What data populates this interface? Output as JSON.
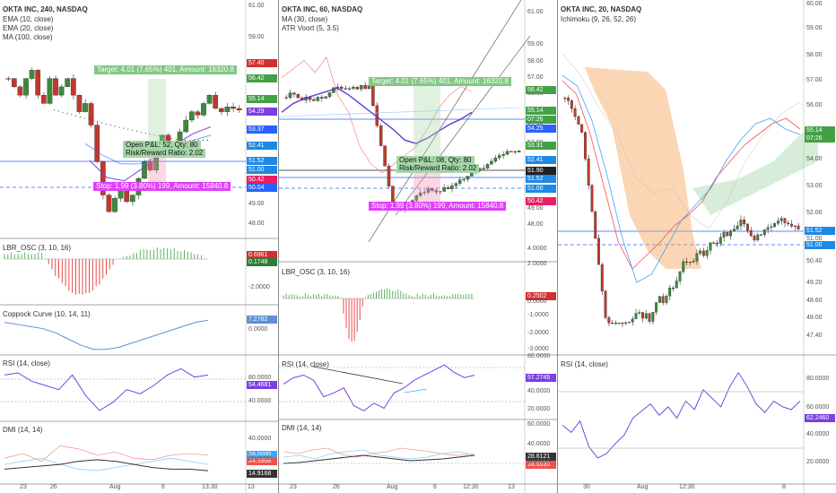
{
  "colors": {
    "up": "#3b8a3b",
    "down": "#c0392b",
    "blue": "#2962ff",
    "purple": "#7b3fe4",
    "pink": "#e91e63",
    "green": "#66bb6a",
    "orange": "#f7a35c"
  },
  "panes": [
    {
      "title": "OKTA INC, 240, NASDAQ",
      "legends": [
        "EMA (10, close)",
        "EMA (20, close)",
        "MA (100, close)"
      ],
      "price_ticks": [
        "61.00",
        "59.00",
        "55.00",
        "53.00",
        "51.00",
        "49.00",
        "48.00"
      ],
      "price_labels": [
        {
          "text": "57.40",
          "color": "#d32f2f"
        },
        {
          "text": "56.42",
          "color": "#43a047"
        },
        {
          "text": "55.14",
          "color": "#43a047"
        },
        {
          "text": "54.29",
          "color": "#7b3fe4"
        },
        {
          "text": "53.37",
          "color": "#2962ff"
        },
        {
          "text": "52.41",
          "color": "#1e88e5"
        },
        {
          "text": "51.52",
          "color": "#1e88e5"
        },
        {
          "text": "51.00",
          "color": "#1e88e5"
        },
        {
          "text": "50.42",
          "color": "#e91e63"
        },
        {
          "text": "50.04",
          "color": "#2962ff"
        }
      ],
      "target": "Target: 4.01 (7.65%) 401, Amount: 16320.8",
      "open_pl": "Open P&L: 52, Qty: 80",
      "rr": "Risk/Reward Ratio: 2.02",
      "stop": "Stop: 1.99 (3.80%) 199, Amount: 15840.8",
      "osc_title": "LBR_OSC (3, 10, 16)",
      "osc_vals": [
        "0.6961",
        "0.1748"
      ],
      "osc_ticks": [
        "-2.0000"
      ],
      "coppock_title": "Coppock Curve (10, 14, 11)",
      "coppock_val": "7.2782",
      "coppock_ticks": [
        "0.0000"
      ],
      "rsi_title": "RSI (14, close)",
      "rsi_val": "54.4681",
      "rsi_ticks": [
        "80.0000",
        "40.0000"
      ],
      "dmi_title": "DMI (14, 14)",
      "dmi_vals": [
        "28.0000",
        "24.5908",
        "14.9168"
      ],
      "dmi_ticks": [
        "40.0000",
        "20.0000"
      ],
      "time_ticks": [
        "23",
        "26",
        "Aug",
        "6",
        "13:30",
        "13"
      ]
    },
    {
      "title": "OKTA INC, 60, NASDAQ",
      "legends": [
        "MA (30, close)",
        "ATR Voort (5, 3.5)"
      ],
      "price_ticks": [
        "61.00",
        "59.00",
        "58.00",
        "57.00",
        "56.00",
        "55.00",
        "54.00",
        "53.00",
        "52.00",
        "51.00",
        "50.00",
        "49.00",
        "48.00"
      ],
      "price_labels": [
        {
          "text": "56.42",
          "color": "#43a047"
        },
        {
          "text": "55.14",
          "color": "#43a047"
        },
        {
          "text": "07:26",
          "color": "#43a047"
        },
        {
          "text": "54.25",
          "color": "#2962ff"
        },
        {
          "text": "53.31",
          "color": "#43a047"
        },
        {
          "text": "52.41",
          "color": "#1e88e5"
        },
        {
          "text": "51.90",
          "color": "#222222"
        },
        {
          "text": "51.52",
          "color": "#1e88e5"
        },
        {
          "text": "51.00",
          "color": "#1e88e5"
        },
        {
          "text": "50.42",
          "color": "#e91e63"
        }
      ],
      "target": "Target: 4.01 (7.65%) 401, Amount: 16320.8",
      "open_pl": "Open P&L: 08, Qty: 80",
      "rr": "Risk/Reward Ratio: 2.02",
      "stop": "Stop: 1.99 (3.80%) 199, Amount: 15840.8",
      "osc_title": "LBR_OSC (3, 10, 16)",
      "osc_vals": [
        "0.2502"
      ],
      "osc_ticks": [
        "4.0000",
        "2.0000",
        "0.0000",
        "-1.0000",
        "-2.0000",
        "-3.0000"
      ],
      "rsi_title": "RSI (14, close)",
      "rsi_val": "57.2745",
      "rsi_ticks": [
        "80.0000",
        "40.0000",
        "20.0000"
      ],
      "dmi_title": "DMI (14, 14)",
      "dmi_vals": [
        "28.6121",
        "18.5535"
      ],
      "dmi_ticks": [
        "60.0000",
        "40.0000",
        "20.0000"
      ],
      "time_ticks": [
        "23",
        "26",
        "Aug",
        "6",
        "12:30",
        "13"
      ]
    },
    {
      "title": "OKTA INC, 20, NASDAQ",
      "legends": [
        "Ichimoku (9, 26, 52, 26)"
      ],
      "price_ticks": [
        "60.00",
        "59.00",
        "58.00",
        "57.00",
        "56.00",
        "55.00",
        "54.00",
        "53.00",
        "52.00",
        "51.00",
        "50.40",
        "49.20",
        "48.60",
        "48.00",
        "47.40"
      ],
      "price_labels": [
        {
          "text": "55.14",
          "color": "#43a047"
        },
        {
          "text": "07:26",
          "color": "#43a047"
        },
        {
          "text": "51.52",
          "color": "#1e88e5"
        },
        {
          "text": "51.00",
          "color": "#1e88e5"
        }
      ],
      "rsi_title": "RSI (14, close)",
      "rsi_val": "62.2460",
      "rsi_ticks": [
        "80.0000",
        "60.0000",
        "40.0000",
        "20.0000"
      ],
      "time_ticks": [
        "30",
        "Aug",
        "12:30",
        "8"
      ]
    }
  ]
}
